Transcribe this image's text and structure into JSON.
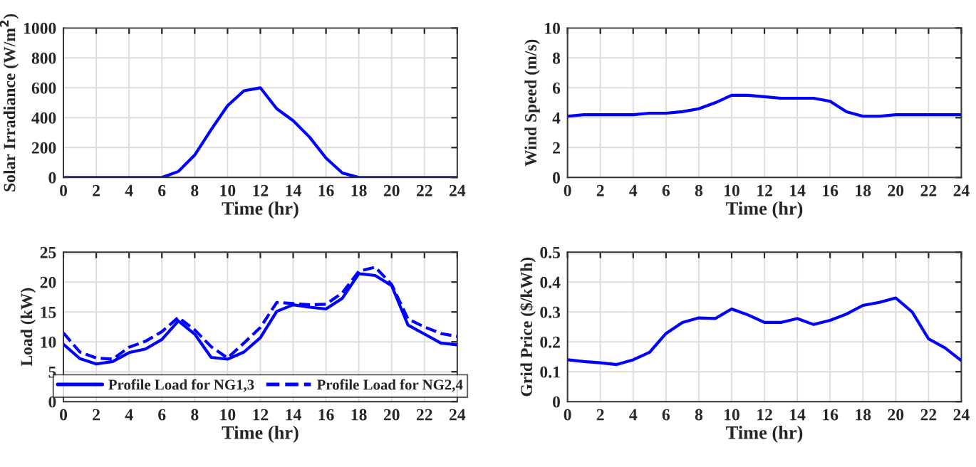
{
  "chart_data": [
    {
      "type": "line",
      "xlabel": "Time (hr)",
      "ylabel": "Solar Irradiance (W/m$^{2}$)",
      "x": [
        0,
        1,
        2,
        3,
        4,
        5,
        6,
        7,
        8,
        9,
        10,
        11,
        12,
        13,
        14,
        15,
        16,
        17,
        18,
        19,
        20,
        21,
        22,
        23,
        24
      ],
      "xlim": [
        0,
        24
      ],
      "xticks": [
        0,
        2,
        4,
        6,
        8,
        10,
        12,
        14,
        16,
        18,
        20,
        22,
        24
      ],
      "ylim": [
        0,
        1000
      ],
      "yticks": [
        0,
        200,
        400,
        600,
        800,
        1000
      ],
      "grid": true,
      "legend": false,
      "series": [
        {
          "color": "#0000ff",
          "values": [
            0,
            0,
            0,
            0,
            0,
            0,
            0,
            40,
            150,
            320,
            480,
            580,
            600,
            460,
            380,
            270,
            130,
            30,
            0,
            0,
            0,
            0,
            0,
            0,
            0
          ]
        }
      ]
    },
    {
      "type": "line",
      "xlabel": "Time (hr)",
      "ylabel": "Wind Speed (m/s)",
      "x": [
        0,
        1,
        2,
        3,
        4,
        5,
        6,
        7,
        8,
        9,
        10,
        11,
        12,
        13,
        14,
        15,
        16,
        17,
        18,
        19,
        20,
        21,
        22,
        23,
        24
      ],
      "xlim": [
        0,
        24
      ],
      "xticks": [
        0,
        2,
        4,
        6,
        8,
        10,
        12,
        14,
        16,
        18,
        20,
        22,
        24
      ],
      "ylim": [
        0,
        10
      ],
      "yticks": [
        0,
        2,
        4,
        6,
        8,
        10
      ],
      "grid": true,
      "legend": false,
      "series": [
        {
          "color": "#0000ff",
          "values": [
            4.1,
            4.2,
            4.2,
            4.2,
            4.2,
            4.3,
            4.3,
            4.4,
            4.6,
            5.0,
            5.5,
            5.5,
            5.4,
            5.3,
            5.3,
            5.3,
            5.1,
            4.4,
            4.1,
            4.1,
            4.2,
            4.2,
            4.2,
            4.2,
            4.2
          ]
        }
      ]
    },
    {
      "type": "line",
      "xlabel": "Time (hr)",
      "ylabel": "Load (kW)",
      "x": [
        0,
        1,
        2,
        3,
        4,
        5,
        6,
        7,
        8,
        9,
        10,
        11,
        12,
        13,
        14,
        15,
        16,
        17,
        18,
        19,
        20,
        21,
        22,
        23,
        24
      ],
      "xlim": [
        0,
        24
      ],
      "xticks": [
        0,
        2,
        4,
        6,
        8,
        10,
        12,
        14,
        16,
        18,
        20,
        22,
        24
      ],
      "ylim": [
        0,
        25
      ],
      "yticks": [
        0,
        5,
        10,
        15,
        20,
        25
      ],
      "grid": true,
      "legend": "bottom",
      "series": [
        {
          "name": "Profile Load for NG1,3",
          "color": "#0000ff",
          "line_style": "solid",
          "values": [
            9.6,
            7.2,
            6.3,
            6.7,
            8.2,
            8.8,
            10.4,
            13.5,
            11.3,
            7.4,
            7.1,
            8.3,
            10.7,
            15.1,
            16.2,
            15.8,
            15.5,
            17.3,
            21.4,
            21.1,
            19.4,
            12.8,
            11.3,
            9.8,
            9.5
          ]
        },
        {
          "name": "Profile Load for NG2,4",
          "color": "#0000ff",
          "line_style": "dashed",
          "values": [
            11.5,
            8.3,
            7.3,
            7.1,
            9.1,
            10.1,
            11.7,
            14.1,
            12.0,
            9.2,
            7.3,
            9.8,
            12.4,
            16.6,
            16.4,
            16.2,
            16.3,
            18.2,
            21.8,
            22.5,
            19.6,
            13.8,
            12.5,
            11.4,
            10.9
          ]
        }
      ]
    },
    {
      "type": "line",
      "xlabel": "Time (hr)",
      "ylabel": "Grid Price ($/kWh)",
      "x": [
        0,
        1,
        2,
        3,
        4,
        5,
        6,
        7,
        8,
        9,
        10,
        11,
        12,
        13,
        14,
        15,
        16,
        17,
        18,
        19,
        20,
        21,
        22,
        23,
        24
      ],
      "xlim": [
        0,
        24
      ],
      "xticks": [
        0,
        2,
        4,
        6,
        8,
        10,
        12,
        14,
        16,
        18,
        20,
        22,
        24
      ],
      "ylim": [
        0,
        0.5
      ],
      "yticks": [
        0,
        0.1,
        0.2,
        0.3,
        0.4,
        0.5
      ],
      "grid": true,
      "legend": false,
      "series": [
        {
          "color": "#0000ff",
          "values": [
            0.14,
            0.134,
            0.13,
            0.124,
            0.14,
            0.165,
            0.228,
            0.265,
            0.28,
            0.278,
            0.31,
            0.29,
            0.265,
            0.265,
            0.278,
            0.258,
            0.272,
            0.293,
            0.322,
            0.332,
            0.347,
            0.3,
            0.21,
            0.18,
            0.137
          ]
        }
      ]
    }
  ]
}
